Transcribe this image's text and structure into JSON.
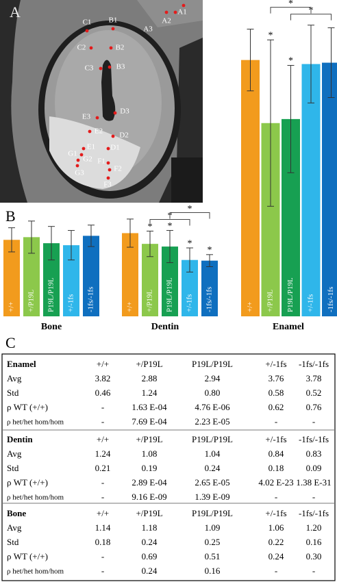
{
  "panels": {
    "a": "A",
    "b": "B",
    "c": "C"
  },
  "image": {
    "points": [
      "A1",
      "A2",
      "A3",
      "B1",
      "B2",
      "B3",
      "C1",
      "C2",
      "C3",
      "D1",
      "D2",
      "D3",
      "E1",
      "E2",
      "E3",
      "F1",
      "F2",
      "F3",
      "G1",
      "G2",
      "G3"
    ]
  },
  "chart_data": [
    {
      "type": "bar",
      "title": "Enamel",
      "categories": [
        "+/+",
        "+/P19L",
        "P19L/P19L",
        "+/-1fs",
        "-1fs/-1fs"
      ],
      "values": [
        3.82,
        2.88,
        2.94,
        3.76,
        3.78
      ],
      "errors": [
        0.46,
        1.24,
        0.8,
        0.58,
        0.52
      ],
      "colors": [
        "#f29b1d",
        "#8cc84b",
        "#17a052",
        "#2fb6ea",
        "#0f6fbf"
      ],
      "bar_marks": [
        null,
        "*",
        "*",
        null,
        null
      ],
      "brackets": [
        {
          "between": [
            "P19L/P19L",
            "-1fs/-1fs"
          ],
          "label": "*"
        },
        {
          "between": [
            "+/P19L",
            "+/-1fs"
          ],
          "label": "*"
        }
      ]
    },
    {
      "type": "bar",
      "title": "Dentin",
      "categories": [
        "+/+",
        "+/P19L",
        "P19L/P19L",
        "+/-1fs",
        "-1fs/-1fs"
      ],
      "values": [
        1.24,
        1.08,
        1.04,
        0.84,
        0.83
      ],
      "errors": [
        0.21,
        0.19,
        0.24,
        0.18,
        0.09
      ],
      "colors": [
        "#f29b1d",
        "#8cc84b",
        "#17a052",
        "#2fb6ea",
        "#0f6fbf"
      ],
      "bar_marks": [
        null,
        "*",
        "*",
        "*",
        "*"
      ],
      "brackets": [
        {
          "between": [
            "+/P19L",
            "+/-1fs"
          ],
          "label": "*"
        },
        {
          "between": [
            "P19L/P19L",
            "-1fs/-1fs"
          ],
          "label": "*"
        }
      ]
    },
    {
      "type": "bar",
      "title": "Bone",
      "categories": [
        "+/+",
        "+/P19L",
        "P19L/P19L",
        "+/-1fs",
        "-1fs/-1fs"
      ],
      "values": [
        1.14,
        1.18,
        1.09,
        1.06,
        1.2
      ],
      "errors": [
        0.18,
        0.24,
        0.25,
        0.22,
        0.16
      ],
      "colors": [
        "#f29b1d",
        "#8cc84b",
        "#17a052",
        "#2fb6ea",
        "#0f6fbf"
      ]
    }
  ],
  "table": {
    "sections": [
      {
        "title": "Enamel",
        "header": [
          "+/+",
          "+/P19L",
          "P19L/P19L",
          "+/-1fs",
          "-1fs/-1fs"
        ],
        "rows": [
          {
            "label": "Avg",
            "cells": [
              "3.82",
              "2.88",
              "2.94",
              "3.76",
              "3.78"
            ]
          },
          {
            "label": "Std",
            "cells": [
              "0.46",
              "1.24",
              "0.80",
              "0.58",
              "0.52"
            ]
          },
          {
            "label": "ρ WT (+/+)",
            "cells": [
              "-",
              "1.63 E-04",
              "4.76 E-06",
              "0.62",
              "0.76"
            ]
          },
          {
            "label": "ρ het/het hom/hom",
            "cells": [
              "-",
              "7.69 E-04",
              "2.23 E-05",
              "-",
              "-"
            ]
          }
        ]
      },
      {
        "title": "Dentin",
        "header": [
          "+/+",
          "+/P19L",
          "P19L/P19L",
          "+/-1fs",
          "-1fs/-1fs"
        ],
        "rows": [
          {
            "label": "Avg",
            "cells": [
              "1.24",
              "1.08",
              "1.04",
              "0.84",
              "0.83"
            ]
          },
          {
            "label": "Std",
            "cells": [
              "0.21",
              "0.19",
              "0.24",
              "0.18",
              "0.09"
            ]
          },
          {
            "label": "ρ WT (+/+)",
            "cells": [
              "-",
              "2.89 E-04",
              "2.65 E-05",
              "4.02 E-23",
              "1.38 E-31"
            ]
          },
          {
            "label": "ρ het/het hom/hom",
            "cells": [
              "-",
              "9.16 E-09",
              "1.39 E-09",
              "-",
              "-"
            ]
          }
        ]
      },
      {
        "title": "Bone",
        "header": [
          "+/+",
          "+/P19L",
          "P19L/P19L",
          "+/-1fs",
          "-1fs/-1fs"
        ],
        "rows": [
          {
            "label": "Avg",
            "cells": [
              "1.14",
              "1.18",
              "1.09",
              "1.06",
              "1.20"
            ]
          },
          {
            "label": "Std",
            "cells": [
              "0.18",
              "0.24",
              "0.25",
              "0.22",
              "0.16"
            ]
          },
          {
            "label": "ρ WT (+/+)",
            "cells": [
              "-",
              "0.69",
              "0.51",
              "0.24",
              "0.30"
            ]
          },
          {
            "label": "ρ het/het hom/hom",
            "cells": [
              "-",
              "0.24",
              "0.16",
              "-",
              "-"
            ]
          }
        ]
      }
    ]
  }
}
